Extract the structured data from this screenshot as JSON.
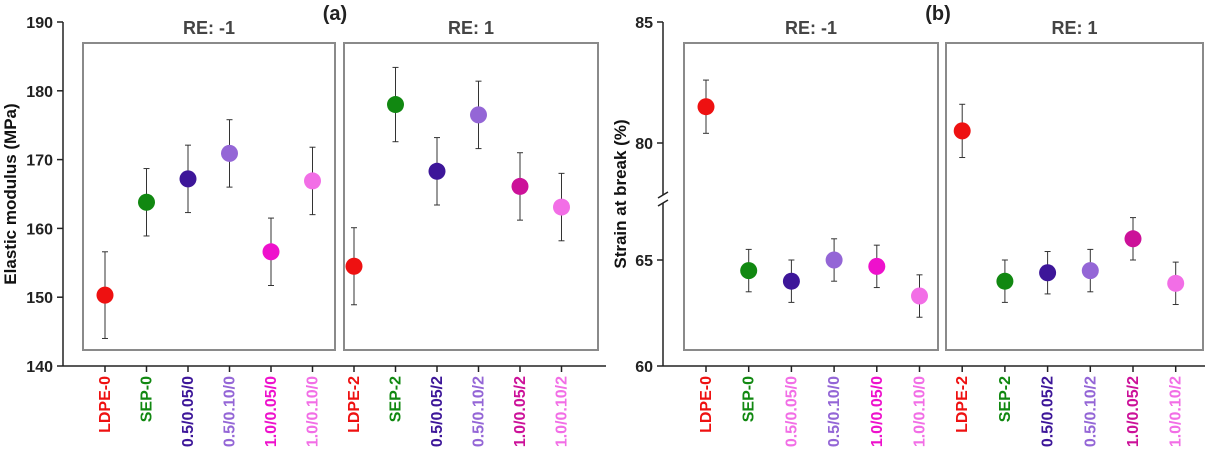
{
  "chart_data": [
    {
      "type": "scatter",
      "panel_label": "(a)",
      "ylabel": "Elastic modulus (MPa)",
      "ylim": [
        140,
        190
      ],
      "yticks": [
        140,
        150,
        160,
        170,
        180,
        190
      ],
      "groups": [
        {
          "label": "RE: -1",
          "categories": [
            0,
            1,
            2,
            3,
            4,
            5
          ]
        },
        {
          "label": "RE: 1",
          "categories": [
            6,
            7,
            8,
            9,
            10,
            11
          ]
        }
      ],
      "categories": [
        "LDPE-0",
        "SEP-0",
        "0.5/0.05/0",
        "0.5/0.10/0",
        "1.0/0.05/0",
        "1.0/0.10/0",
        "LDPE-2",
        "SEP-2",
        "0.5/0.05/2",
        "0.5/0.10/2",
        "1.0/0.05/2",
        "1.0/0.10/2"
      ],
      "values": [
        150.3,
        163.8,
        167.2,
        170.9,
        156.6,
        166.9,
        154.5,
        178.0,
        168.3,
        176.5,
        166.1,
        163.1
      ],
      "errors": [
        6.3,
        4.9,
        4.9,
        4.9,
        4.9,
        4.9,
        5.6,
        5.4,
        4.9,
        4.9,
        4.9,
        4.9
      ],
      "colors": [
        "#ee1111",
        "#118811",
        "#3d1699",
        "#9466d6",
        "#ee11cc",
        "#f26ee6",
        "#ee1111",
        "#118811",
        "#3d1699",
        "#9466d6",
        "#cc1199",
        "#f26ee6"
      ]
    },
    {
      "type": "scatter",
      "panel_label": "(b)",
      "ylabel": "Strain at break (%)",
      "axis_break": true,
      "yticks": [
        60,
        65,
        80,
        85
      ],
      "groups": [
        {
          "label": "RE: -1",
          "categories": [
            0,
            1,
            2,
            3,
            4,
            5
          ]
        },
        {
          "label": "RE: 1",
          "categories": [
            6,
            7,
            8,
            9,
            10,
            11
          ]
        }
      ],
      "categories": [
        "LDPE-0",
        "SEP-0",
        "0.5/0.05/0",
        "0.5/0.10/0",
        "1.0/0.05/0",
        "1.0/0.10/0",
        "LDPE-2",
        "SEP-2",
        "0.5/0.05/2",
        "0.5/0.10/2",
        "1.0/0.05/2",
        "1.0/0.10/2"
      ],
      "values": [
        81.5,
        64.5,
        64.0,
        65.0,
        64.7,
        63.3,
        80.5,
        64.0,
        64.4,
        64.5,
        66.0,
        63.9
      ],
      "errors": [
        1.1,
        1.0,
        1.0,
        1.0,
        1.0,
        1.0,
        1.1,
        1.0,
        1.0,
        1.0,
        1.0,
        1.0
      ],
      "label_colors": [
        "#ee1111",
        "#118811",
        "#f26ee6",
        "#9466d6",
        "#ee11cc",
        "#f26ee6",
        "#ee1111",
        "#118811",
        "#3d1699",
        "#9466d6",
        "#cc1199",
        "#f26ee6"
      ],
      "colors": [
        "#ee1111",
        "#118811",
        "#3d1699",
        "#9466d6",
        "#ee11cc",
        "#f26ee6",
        "#ee1111",
        "#118811",
        "#3d1699",
        "#9466d6",
        "#cc1199",
        "#f26ee6"
      ]
    }
  ]
}
